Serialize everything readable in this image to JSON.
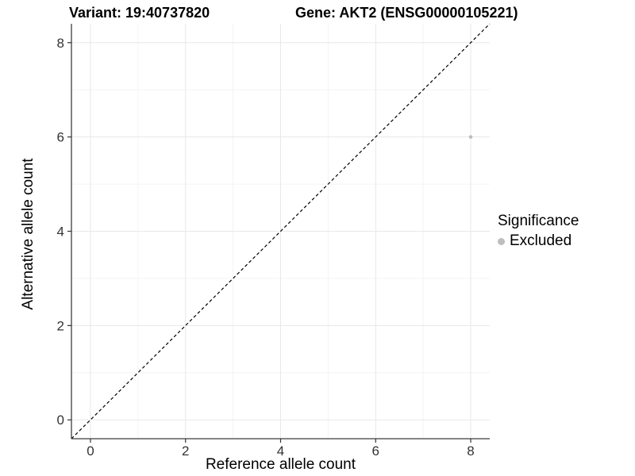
{
  "header": {
    "variant_title": "Variant: 19:40737820",
    "gene_title": "Gene: AKT2 (ENSG00000105221)"
  },
  "legend": {
    "title": "Significance",
    "items": [
      {
        "label": "Excluded",
        "color": "#bebebe"
      }
    ]
  },
  "chart_data": {
    "type": "scatter",
    "title": "",
    "xlabel": "Reference allele count",
    "ylabel": "Alternative allele count",
    "xlim": [
      -0.4,
      8.4
    ],
    "ylim": [
      -0.4,
      8.4
    ],
    "x_ticks": [
      0,
      2,
      4,
      6,
      8
    ],
    "y_ticks": [
      0,
      2,
      4,
      6,
      8
    ],
    "x_minor_ticks": [
      1,
      3,
      5,
      7
    ],
    "y_minor_ticks": [
      1,
      3,
      5,
      7
    ],
    "grid": "major+minor",
    "legend_position": "right",
    "reference_line": {
      "slope": 1,
      "intercept": 0,
      "style": "dashed",
      "color": "#000000"
    },
    "series": [
      {
        "name": "Excluded",
        "color": "#bebebe",
        "points": [
          [
            8,
            6
          ]
        ]
      }
    ],
    "colors": {
      "grid_major": "#e8e8e8",
      "grid_minor": "#f4f4f4",
      "axis": "#3c3c3c",
      "tick": "#333333",
      "background": "#ffffff"
    }
  }
}
